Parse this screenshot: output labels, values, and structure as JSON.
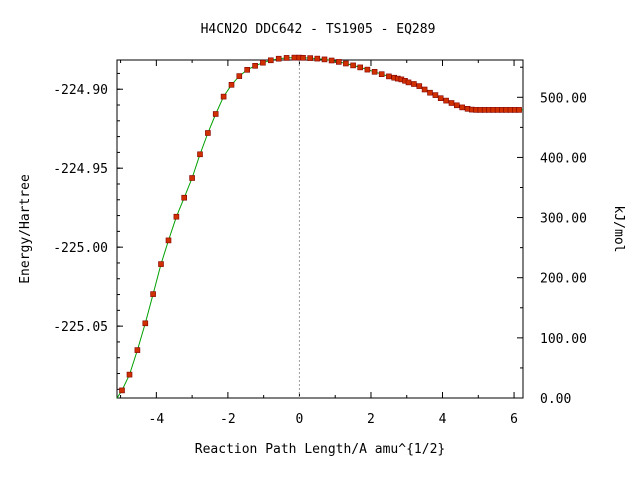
{
  "chart_data": {
    "type": "line",
    "title": "H4CN2O   DDC642 - TS1905 - EQ289",
    "xlabel": "Reaction Path Length/A amu^{1/2}",
    "ylabel": "Energy/Hartree",
    "y2label": "kJ/mol",
    "xlim": [
      -5.1,
      6.25
    ],
    "ylim": [
      -225.0955,
      -224.8815
    ],
    "y2lim": [
      0,
      562
    ],
    "x_ticks": [
      -4,
      -2,
      0,
      2,
      4,
      6
    ],
    "x_tick_labels": [
      "-4",
      "-2",
      "0",
      "2",
      "4",
      "6"
    ],
    "y_ticks": [
      -224.9,
      -224.95,
      -225.0,
      -225.05
    ],
    "y_tick_labels": [
      "-224.90",
      "-224.95",
      "-225.00",
      "-225.05"
    ],
    "y2_ticks": [
      0,
      100,
      200,
      300,
      400,
      500
    ],
    "y2_tick_labels": [
      "0.00",
      "100.00",
      "200.00",
      "300.00",
      "400.00",
      "500.00"
    ],
    "ts_marker_x": 0,
    "grid": false,
    "colors": {
      "line": "#00a000",
      "marker": "#d03000",
      "marker_edge": "#800000",
      "ts_line": "#a0a0a0"
    },
    "series": [
      {
        "x": [
          -4.96,
          -4.75,
          -4.53,
          -4.31,
          -4.09,
          -3.87,
          -3.66,
          -3.44,
          -3.22,
          -3.0,
          -2.78,
          -2.56,
          -2.34,
          -2.12,
          -1.9,
          -1.68,
          -1.46,
          -1.24,
          -1.02,
          -0.8,
          -0.58,
          -0.36,
          -0.14,
          0.0,
          0.1,
          0.3,
          0.5,
          0.7,
          0.9,
          1.1,
          1.3,
          1.5,
          1.7,
          1.9,
          2.1,
          2.3,
          2.5,
          2.65,
          2.75,
          2.85,
          2.95,
          3.05,
          3.2,
          3.35,
          3.5,
          3.65,
          3.8,
          3.95,
          4.1,
          4.25,
          4.4,
          4.55,
          4.7,
          4.82,
          4.94,
          5.06,
          5.18,
          5.3,
          5.42,
          5.54,
          5.66,
          5.78,
          5.9,
          6.02,
          6.14
        ],
        "y": [
          -225.0907,
          -225.0807,
          -225.0652,
          -225.0482,
          -225.0297,
          -225.0107,
          -224.9957,
          -224.9807,
          -224.9687,
          -224.9562,
          -224.9412,
          -224.9277,
          -224.9157,
          -224.9047,
          -224.8972,
          -224.8917,
          -224.8877,
          -224.8852,
          -224.8832,
          -224.8817,
          -224.8807,
          -224.8802,
          -224.88,
          -224.88,
          -224.8801,
          -224.8803,
          -224.8806,
          -224.8811,
          -224.8818,
          -224.8827,
          -224.8837,
          -224.8849,
          -224.8862,
          -224.8876,
          -224.889,
          -224.8905,
          -224.8919,
          -224.8927,
          -224.8933,
          -224.8938,
          -224.8947,
          -224.8957,
          -224.8967,
          -224.898,
          -224.9002,
          -224.9022,
          -224.9037,
          -224.9057,
          -224.9072,
          -224.9087,
          -224.9102,
          -224.9115,
          -224.9124,
          -224.9129,
          -224.9131,
          -224.9131,
          -224.9131,
          -224.9131,
          -224.9131,
          -224.9131,
          -224.9131,
          -224.9131,
          -224.9131,
          -224.9131,
          -224.9131
        ]
      }
    ]
  }
}
